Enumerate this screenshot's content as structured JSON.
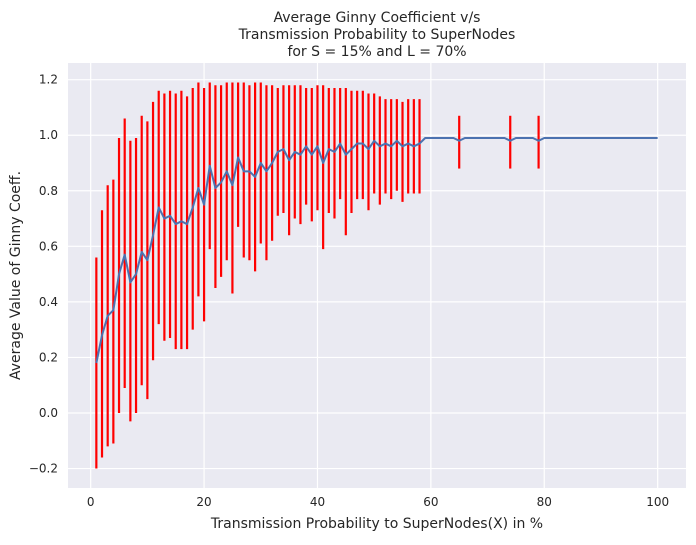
{
  "chart_data": {
    "type": "line",
    "title_lines": [
      "Average Ginny Coefficient v/s",
      "Transmission Probability to SuperNodes",
      "for S = 15% and L = 70%"
    ],
    "xlabel": "Transmission Probability to SuperNodes(X) in %",
    "ylabel": "Average Value of Ginny Coeff.",
    "xlim": [
      -4,
      105
    ],
    "ylim": [
      -0.27,
      1.26
    ],
    "xticks": [
      0,
      20,
      40,
      60,
      80,
      100
    ],
    "yticks": [
      -0.2,
      0.0,
      0.2,
      0.4,
      0.6,
      0.8,
      1.0,
      1.2
    ],
    "ytick_labels": [
      "−0.2",
      "0.0",
      "0.2",
      "0.4",
      "0.6",
      "0.8",
      "1.0",
      "1.2"
    ],
    "grid": true,
    "background": "#eaeaf2",
    "line_color": "#4c72b0",
    "errorbar_color": "#ff0000",
    "series": [
      {
        "kind": "line",
        "x": [
          1,
          2,
          3,
          4,
          5,
          6,
          7,
          8,
          9,
          10,
          11,
          12,
          13,
          14,
          15,
          16,
          17,
          18,
          19,
          20,
          21,
          22,
          23,
          24,
          25,
          26,
          27,
          28,
          29,
          30,
          31,
          32,
          33,
          34,
          35,
          36,
          37,
          38,
          39,
          40,
          41,
          42,
          43,
          44,
          45,
          46,
          47,
          48,
          49,
          50,
          51,
          52,
          53,
          54,
          55,
          56,
          57,
          58,
          59,
          60,
          61,
          62,
          63,
          64,
          65,
          66,
          67,
          68,
          69,
          70,
          71,
          72,
          73,
          74,
          75,
          76,
          77,
          78,
          79,
          80,
          81,
          82,
          83,
          84,
          85,
          86,
          87,
          88,
          89,
          90,
          91,
          92,
          93,
          94,
          95,
          96,
          97,
          98,
          99,
          100
        ],
        "y": [
          0.18,
          0.28,
          0.35,
          0.37,
          0.5,
          0.57,
          0.47,
          0.5,
          0.58,
          0.55,
          0.64,
          0.74,
          0.7,
          0.71,
          0.68,
          0.69,
          0.68,
          0.74,
          0.81,
          0.75,
          0.89,
          0.81,
          0.83,
          0.87,
          0.82,
          0.92,
          0.87,
          0.87,
          0.85,
          0.9,
          0.87,
          0.9,
          0.94,
          0.95,
          0.91,
          0.94,
          0.93,
          0.96,
          0.93,
          0.96,
          0.9,
          0.95,
          0.94,
          0.97,
          0.93,
          0.95,
          0.97,
          0.97,
          0.95,
          0.98,
          0.96,
          0.97,
          0.96,
          0.98,
          0.96,
          0.97,
          0.96,
          0.97,
          0.99,
          0.99,
          0.99,
          0.99,
          0.99,
          0.99,
          0.98,
          0.99,
          0.99,
          0.99,
          0.99,
          0.99,
          0.99,
          0.99,
          0.99,
          0.98,
          0.99,
          0.99,
          0.99,
          0.99,
          0.98,
          0.99,
          0.99,
          0.99,
          0.99,
          0.99,
          0.99,
          0.99,
          0.99,
          0.99,
          0.99,
          0.99,
          0.99,
          0.99,
          0.99,
          0.99,
          0.99,
          0.99,
          0.99,
          0.99,
          0.99,
          0.99
        ]
      },
      {
        "kind": "errorbars",
        "bars": [
          {
            "x": 1,
            "low": -0.2,
            "high": 0.56
          },
          {
            "x": 2,
            "low": -0.16,
            "high": 0.73
          },
          {
            "x": 3,
            "low": -0.12,
            "high": 0.82
          },
          {
            "x": 4,
            "low": -0.11,
            "high": 0.84
          },
          {
            "x": 5,
            "low": 0.0,
            "high": 0.99
          },
          {
            "x": 6,
            "low": 0.09,
            "high": 1.06
          },
          {
            "x": 7,
            "low": -0.03,
            "high": 0.98
          },
          {
            "x": 8,
            "low": 0.0,
            "high": 0.99
          },
          {
            "x": 9,
            "low": 0.1,
            "high": 1.07
          },
          {
            "x": 10,
            "low": 0.05,
            "high": 1.05
          },
          {
            "x": 11,
            "low": 0.19,
            "high": 1.12
          },
          {
            "x": 12,
            "low": 0.32,
            "high": 1.16
          },
          {
            "x": 13,
            "low": 0.26,
            "high": 1.15
          },
          {
            "x": 14,
            "low": 0.27,
            "high": 1.16
          },
          {
            "x": 15,
            "low": 0.23,
            "high": 1.15
          },
          {
            "x": 16,
            "low": 0.23,
            "high": 1.16
          },
          {
            "x": 17,
            "low": 0.23,
            "high": 1.14
          },
          {
            "x": 18,
            "low": 0.3,
            "high": 1.17
          },
          {
            "x": 19,
            "low": 0.42,
            "high": 1.19
          },
          {
            "x": 20,
            "low": 0.33,
            "high": 1.17
          },
          {
            "x": 21,
            "low": 0.59,
            "high": 1.19
          },
          {
            "x": 22,
            "low": 0.45,
            "high": 1.18
          },
          {
            "x": 23,
            "low": 0.49,
            "high": 1.18
          },
          {
            "x": 24,
            "low": 0.55,
            "high": 1.19
          },
          {
            "x": 25,
            "low": 0.43,
            "high": 1.19
          },
          {
            "x": 26,
            "low": 0.67,
            "high": 1.19
          },
          {
            "x": 27,
            "low": 0.56,
            "high": 1.19
          },
          {
            "x": 28,
            "low": 0.55,
            "high": 1.18
          },
          {
            "x": 29,
            "low": 0.51,
            "high": 1.19
          },
          {
            "x": 30,
            "low": 0.61,
            "high": 1.19
          },
          {
            "x": 31,
            "low": 0.55,
            "high": 1.18
          },
          {
            "x": 32,
            "low": 0.62,
            "high": 1.18
          },
          {
            "x": 33,
            "low": 0.71,
            "high": 1.17
          },
          {
            "x": 34,
            "low": 0.72,
            "high": 1.18
          },
          {
            "x": 35,
            "low": 0.64,
            "high": 1.18
          },
          {
            "x": 36,
            "low": 0.7,
            "high": 1.18
          },
          {
            "x": 37,
            "low": 0.68,
            "high": 1.18
          },
          {
            "x": 38,
            "low": 0.75,
            "high": 1.17
          },
          {
            "x": 39,
            "low": 0.69,
            "high": 1.17
          },
          {
            "x": 40,
            "low": 0.73,
            "high": 1.18
          },
          {
            "x": 41,
            "low": 0.59,
            "high": 1.18
          },
          {
            "x": 42,
            "low": 0.72,
            "high": 1.17
          },
          {
            "x": 43,
            "low": 0.7,
            "high": 1.17
          },
          {
            "x": 44,
            "low": 0.77,
            "high": 1.17
          },
          {
            "x": 45,
            "low": 0.64,
            "high": 1.17
          },
          {
            "x": 46,
            "low": 0.72,
            "high": 1.16
          },
          {
            "x": 47,
            "low": 0.77,
            "high": 1.16
          },
          {
            "x": 48,
            "low": 0.77,
            "high": 1.16
          },
          {
            "x": 49,
            "low": 0.73,
            "high": 1.15
          },
          {
            "x": 50,
            "low": 0.79,
            "high": 1.15
          },
          {
            "x": 51,
            "low": 0.75,
            "high": 1.14
          },
          {
            "x": 52,
            "low": 0.79,
            "high": 1.13
          },
          {
            "x": 53,
            "low": 0.77,
            "high": 1.13
          },
          {
            "x": 54,
            "low": 0.8,
            "high": 1.13
          },
          {
            "x": 55,
            "low": 0.76,
            "high": 1.12
          },
          {
            "x": 56,
            "low": 0.79,
            "high": 1.13
          },
          {
            "x": 57,
            "low": 0.79,
            "high": 1.13
          },
          {
            "x": 58,
            "low": 0.79,
            "high": 1.13
          },
          {
            "x": 65,
            "low": 0.88,
            "high": 1.07
          },
          {
            "x": 74,
            "low": 0.88,
            "high": 1.07
          },
          {
            "x": 79,
            "low": 0.88,
            "high": 1.07
          }
        ]
      }
    ]
  }
}
